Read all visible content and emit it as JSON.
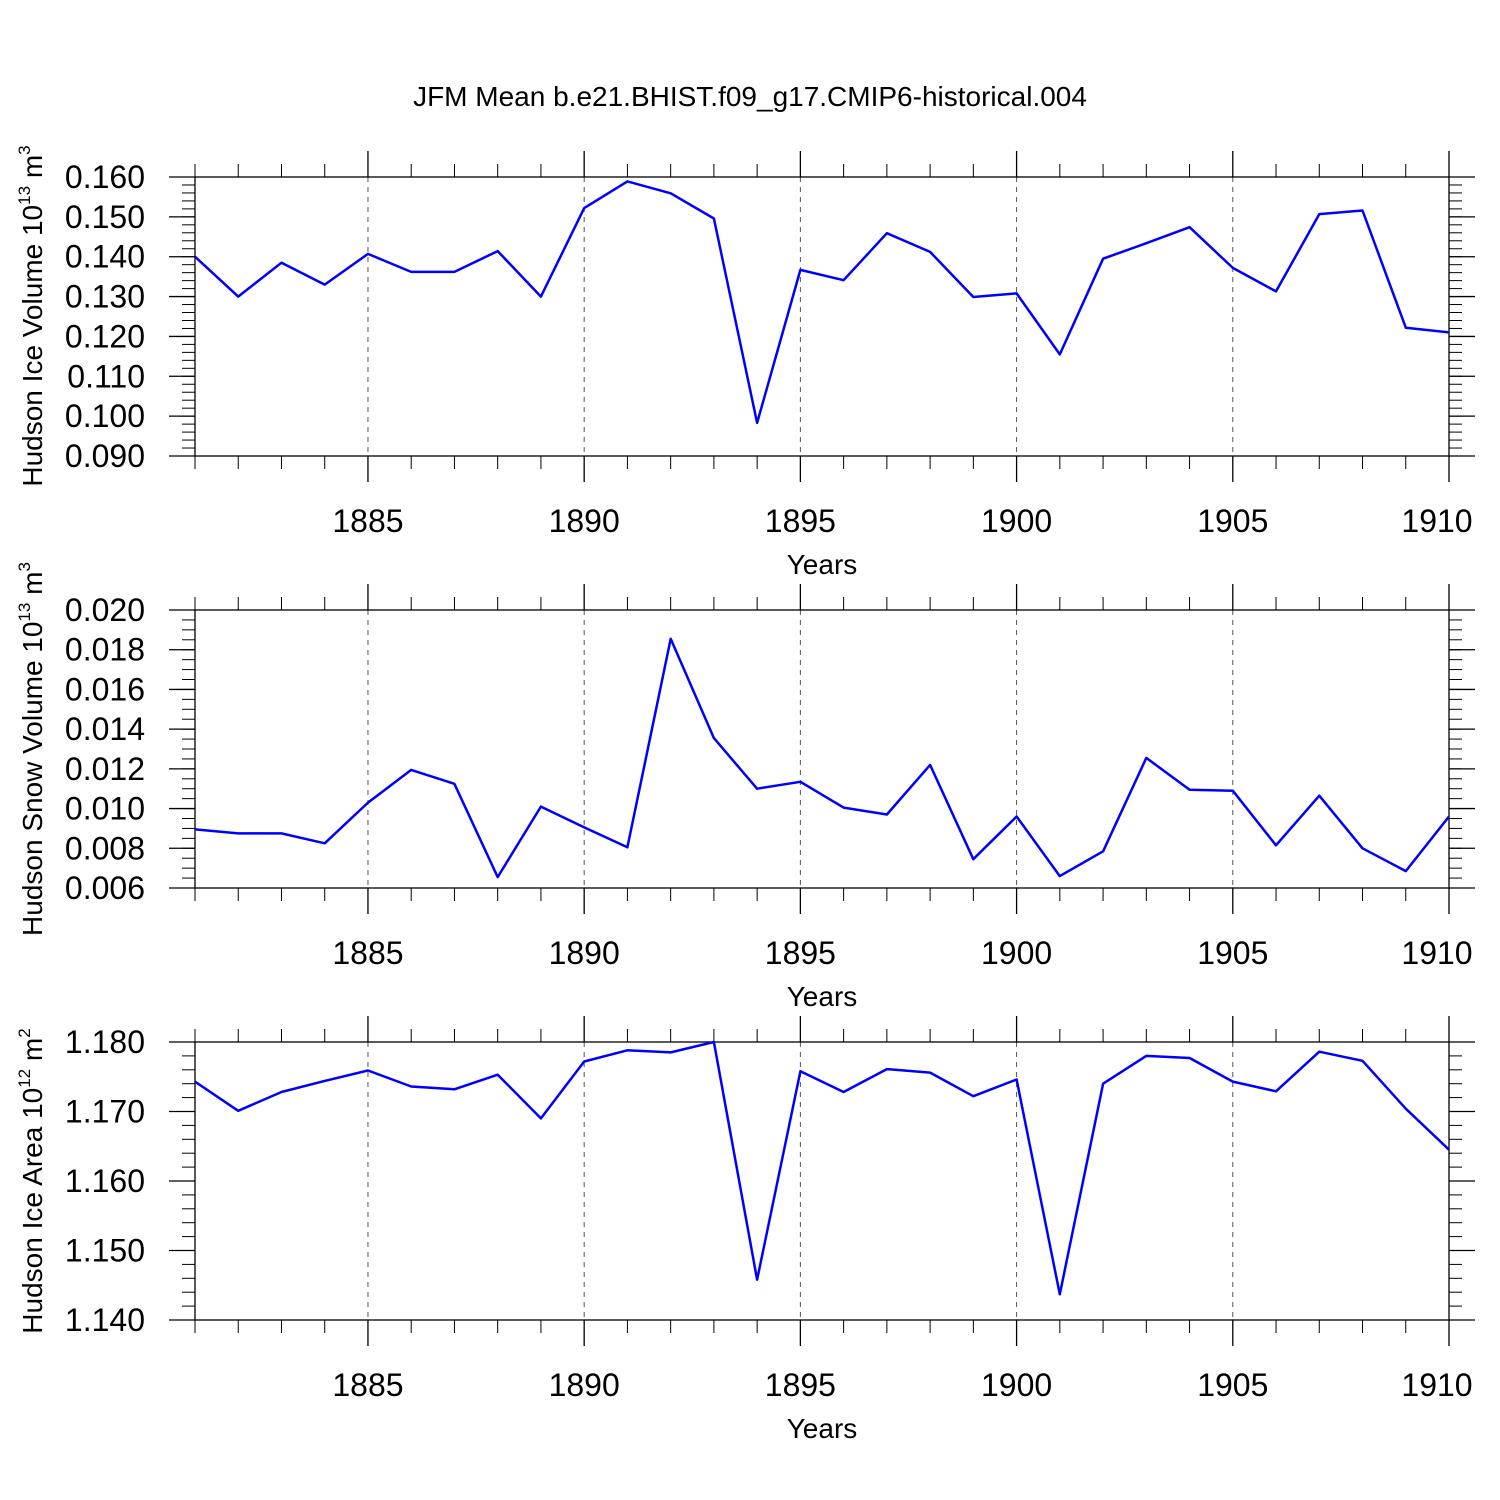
{
  "figure_title": "JFM Mean b.e21.BHIST.f09_g17.CMIP6-historical.004",
  "line_color": "#0000ff",
  "chart_data": [
    {
      "type": "line",
      "title": "JFM Mean b.e21.BHIST.f09_g17.CMIP6-historical.004",
      "xlabel": "Years",
      "ylabel": {
        "main": "Hudson Ice Volume 10",
        "exp": "13",
        "unit": " m",
        "unit_exp": "3"
      },
      "xlim": [
        1881,
        1910
      ],
      "ylim": [
        0.09,
        0.16
      ],
      "x_ticks": [
        1885,
        1890,
        1895,
        1900,
        1905,
        1910
      ],
      "y_ticks": [
        "0.090",
        "0.100",
        "0.110",
        "0.120",
        "0.130",
        "0.140",
        "0.150",
        "0.160"
      ],
      "y_minor_step": 0.002,
      "x": [
        1881,
        1882,
        1883,
        1884,
        1885,
        1886,
        1887,
        1888,
        1889,
        1890,
        1891,
        1892,
        1893,
        1894,
        1895,
        1896,
        1897,
        1898,
        1899,
        1900,
        1901,
        1902,
        1903,
        1904,
        1905,
        1906,
        1907,
        1908,
        1909,
        1910
      ],
      "values": [
        0.14,
        0.13,
        0.1385,
        0.133,
        0.1407,
        0.1362,
        0.1362,
        0.1414,
        0.13,
        0.1522,
        0.1589,
        0.1559,
        0.1496,
        0.0983,
        0.1367,
        0.1341,
        0.1459,
        0.1412,
        0.1299,
        0.1308,
        0.1155,
        0.1395,
        0.1434,
        0.1474,
        0.1372,
        0.1313,
        0.1507,
        0.1516,
        0.1222,
        0.121
      ]
    },
    {
      "type": "line",
      "xlabel": "Years",
      "ylabel": {
        "main": "Hudson Snow Volume 10",
        "exp": "13",
        "unit": " m",
        "unit_exp": "3"
      },
      "xlim": [
        1881,
        1910
      ],
      "ylim": [
        0.006,
        0.02
      ],
      "x_ticks": [
        1885,
        1890,
        1895,
        1900,
        1905,
        1910
      ],
      "y_ticks": [
        "0.006",
        "0.008",
        "0.010",
        "0.012",
        "0.014",
        "0.016",
        "0.018",
        "0.020"
      ],
      "y_minor_step": 0.0005,
      "x": [
        1881,
        1882,
        1883,
        1884,
        1885,
        1886,
        1887,
        1888,
        1889,
        1890,
        1891,
        1892,
        1893,
        1894,
        1895,
        1896,
        1897,
        1898,
        1899,
        1900,
        1901,
        1902,
        1903,
        1904,
        1905,
        1906,
        1907,
        1908,
        1909,
        1910
      ],
      "values": [
        0.00895,
        0.00875,
        0.00875,
        0.00825,
        0.0103,
        0.01195,
        0.01125,
        0.00655,
        0.0101,
        0.00905,
        0.00805,
        0.01855,
        0.01355,
        0.011,
        0.01135,
        0.01005,
        0.0097,
        0.0122,
        0.00745,
        0.0096,
        0.0066,
        0.00785,
        0.01255,
        0.01095,
        0.0109,
        0.00815,
        0.01065,
        0.008,
        0.00685,
        0.0096
      ]
    },
    {
      "type": "line",
      "xlabel": "Years",
      "ylabel": {
        "main": "Hudson Ice Area 10",
        "exp": "12",
        "unit": " m",
        "unit_exp": "2"
      },
      "xlim": [
        1881,
        1910
      ],
      "ylim": [
        1.14,
        1.18
      ],
      "x_ticks": [
        1885,
        1890,
        1895,
        1900,
        1905,
        1910
      ],
      "y_ticks": [
        "1.140",
        "1.150",
        "1.160",
        "1.170",
        "1.180"
      ],
      "y_minor_step": 0.002,
      "x": [
        1881,
        1882,
        1883,
        1884,
        1885,
        1886,
        1887,
        1888,
        1889,
        1890,
        1891,
        1892,
        1893,
        1894,
        1895,
        1896,
        1897,
        1898,
        1899,
        1900,
        1901,
        1902,
        1903,
        1904,
        1905,
        1906,
        1907,
        1908,
        1909,
        1910
      ],
      "values": [
        1.1743,
        1.1701,
        1.1728,
        1.1744,
        1.1759,
        1.1736,
        1.1732,
        1.1753,
        1.169,
        1.1772,
        1.1788,
        1.1785,
        1.18,
        1.1458,
        1.1758,
        1.1728,
        1.1761,
        1.1756,
        1.1722,
        1.1746,
        1.1437,
        1.174,
        1.178,
        1.1777,
        1.1743,
        1.1729,
        1.1786,
        1.1773,
        1.1704,
        1.1645
      ]
    }
  ]
}
